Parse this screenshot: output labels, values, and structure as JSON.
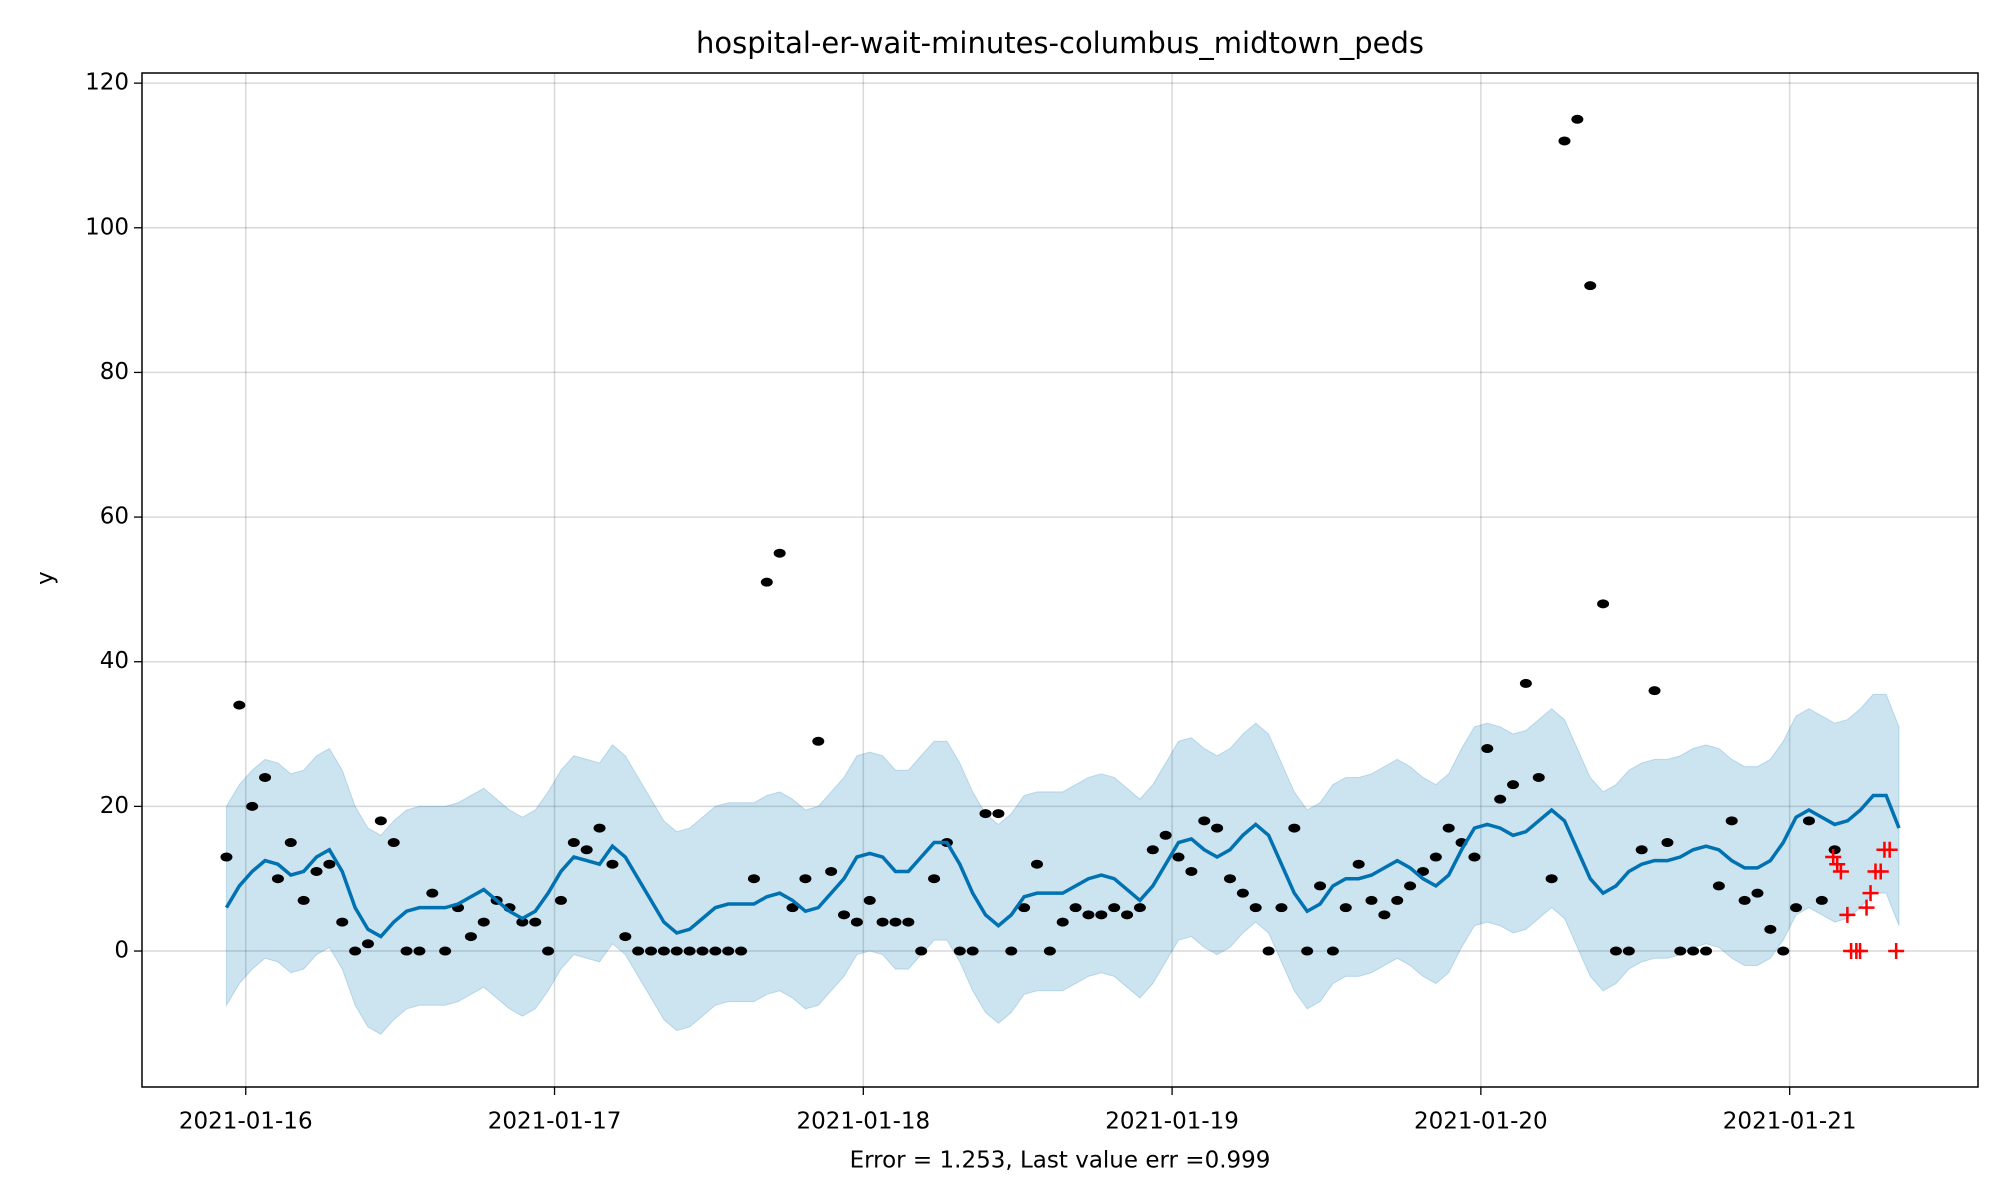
{
  "chart_data": {
    "type": "forecast",
    "title": "hospital-er-wait-minutes-columbus_midtown_peds",
    "xlabel": "Error = 1.253, Last value err =0.999",
    "ylabel": "y",
    "xlim": [
      -0.336,
      5.61
    ],
    "ylim": [
      -18.8,
      121.4
    ],
    "xticks": [
      {
        "value": 0,
        "label": "2021-01-16"
      },
      {
        "value": 1,
        "label": "2021-01-17"
      },
      {
        "value": 2,
        "label": "2021-01-18"
      },
      {
        "value": 3,
        "label": "2021-01-19"
      },
      {
        "value": 4,
        "label": "2021-01-20"
      },
      {
        "value": 5,
        "label": "2021-01-21"
      }
    ],
    "yticks": [
      0,
      20,
      40,
      60,
      80,
      100,
      120
    ],
    "grid": true,
    "observed": {
      "color": "#000000",
      "x": [
        -0.0625,
        -0.0208,
        0.0208,
        0.0625,
        0.1042,
        0.1458,
        0.1875,
        0.2292,
        0.2708,
        0.3125,
        0.3542,
        0.3958,
        0.4375,
        0.4792,
        0.5208,
        0.5625,
        0.6042,
        0.6458,
        0.6875,
        0.7292,
        0.7708,
        0.8125,
        0.8542,
        0.8958,
        0.9375,
        0.9792,
        1.0208,
        1.0625,
        1.1042,
        1.1458,
        1.1875,
        1.2292,
        1.2708,
        1.3125,
        1.3542,
        1.3958,
        1.4375,
        1.4792,
        1.5208,
        1.5625,
        1.6042,
        1.6458,
        1.6875,
        1.7292,
        1.7708,
        1.8125,
        1.8542,
        1.8958,
        1.9375,
        1.9792,
        2.0208,
        2.0625,
        2.1042,
        2.1458,
        2.1875,
        2.2292,
        2.2708,
        2.3125,
        2.3542,
        2.3958,
        2.4375,
        2.4792,
        2.5208,
        2.5625,
        2.6042,
        2.6458,
        2.6875,
        2.7292,
        2.7708,
        2.8125,
        2.8542,
        2.8958,
        2.9375,
        2.9792,
        3.0208,
        3.0625,
        3.1042,
        3.1458,
        3.1875,
        3.2292,
        3.2708,
        3.3125,
        3.3542,
        3.3958,
        3.4375,
        3.4792,
        3.5208,
        3.5625,
        3.6042,
        3.6458,
        3.6875,
        3.7292,
        3.7708,
        3.8125,
        3.8542,
        3.8958,
        3.9375,
        3.9792,
        4.0208,
        4.0625,
        4.1042,
        4.1458,
        4.1875,
        4.2292,
        4.2708,
        4.3125,
        4.3542,
        4.3958,
        4.4375,
        4.4792,
        4.5208,
        4.5625,
        4.6042,
        4.6458,
        4.6875,
        4.7292,
        4.7708,
        4.8125,
        4.8542,
        4.8958,
        4.9375,
        4.9792,
        5.0208,
        5.0625,
        5.1042,
        5.1458
      ],
      "y": [
        13,
        34,
        20,
        24,
        10,
        15,
        7,
        11,
        12,
        4,
        0,
        1,
        18,
        15,
        0,
        0,
        8,
        0,
        6,
        2,
        4,
        7,
        6,
        4,
        4,
        0,
        7,
        15,
        14,
        17,
        12,
        2,
        0,
        0,
        0,
        0,
        0,
        0,
        0,
        0,
        0,
        10,
        51,
        55,
        6,
        10,
        29,
        11,
        5,
        4,
        7,
        4,
        4,
        4,
        0,
        10,
        15,
        0,
        0,
        19,
        19,
        0,
        6,
        12,
        0,
        4,
        6,
        5,
        5,
        6,
        5,
        6,
        14,
        16,
        13,
        11,
        18,
        17,
        10,
        8,
        6,
        0,
        6,
        17,
        0,
        9,
        0,
        6,
        12,
        7,
        5,
        7,
        9,
        11,
        13,
        17,
        15,
        13,
        28,
        21,
        23,
        37,
        24,
        10,
        112,
        115,
        92,
        48,
        0,
        0,
        14,
        36,
        15,
        0,
        0,
        0,
        9,
        18,
        7,
        8,
        3,
        0,
        6,
        18,
        7,
        14
      ]
    },
    "test": {
      "color": "#ff0000",
      "x": [
        5.141,
        5.154,
        5.166,
        5.187,
        5.199,
        5.216,
        5.228,
        5.249,
        5.262,
        5.278,
        5.295,
        5.307,
        5.324,
        5.345
      ],
      "y": [
        13,
        12,
        11,
        5,
        0,
        0,
        0,
        6,
        8,
        11,
        11,
        14,
        14,
        0
      ]
    },
    "forecast": {
      "color": "#0072b2",
      "x": [
        -0.0625,
        -0.0208,
        0.0208,
        0.0625,
        0.1042,
        0.1458,
        0.1875,
        0.2292,
        0.2708,
        0.3125,
        0.3542,
        0.3958,
        0.4375,
        0.4792,
        0.5208,
        0.5625,
        0.6042,
        0.6458,
        0.6875,
        0.7292,
        0.7708,
        0.8125,
        0.8542,
        0.8958,
        0.9375,
        0.9792,
        1.0208,
        1.0625,
        1.1042,
        1.1458,
        1.1875,
        1.2292,
        1.2708,
        1.3125,
        1.3542,
        1.3958,
        1.4375,
        1.4792,
        1.5208,
        1.5625,
        1.6042,
        1.6458,
        1.6875,
        1.7292,
        1.7708,
        1.8125,
        1.8542,
        1.8958,
        1.9375,
        1.9792,
        2.0208,
        2.0625,
        2.1042,
        2.1458,
        2.1875,
        2.2292,
        2.2708,
        2.3125,
        2.3542,
        2.3958,
        2.4375,
        2.4792,
        2.5208,
        2.5625,
        2.6042,
        2.6458,
        2.6875,
        2.7292,
        2.7708,
        2.8125,
        2.8542,
        2.8958,
        2.9375,
        2.9792,
        3.0208,
        3.0625,
        3.1042,
        3.1458,
        3.1875,
        3.2292,
        3.2708,
        3.3125,
        3.3542,
        3.3958,
        3.4375,
        3.4792,
        3.5208,
        3.5625,
        3.6042,
        3.6458,
        3.6875,
        3.7292,
        3.7708,
        3.8125,
        3.8542,
        3.8958,
        3.9375,
        3.9792,
        4.0208,
        4.0625,
        4.1042,
        4.1458,
        4.1875,
        4.2292,
        4.2708,
        4.3125,
        4.3542,
        4.3958,
        4.4375,
        4.4792,
        4.5208,
        4.5625,
        4.6042,
        4.6458,
        4.6875,
        4.7292,
        4.7708,
        4.8125,
        4.8542,
        4.8958,
        4.9375,
        4.9792,
        5.0208,
        5.0625,
        5.1042,
        5.1458,
        5.1875,
        5.2292,
        5.2708,
        5.3125,
        5.3542
      ],
      "y": [
        6,
        9,
        11,
        12.5,
        12,
        10.5,
        11,
        13,
        14,
        11,
        6,
        3,
        2,
        4,
        5.5,
        6,
        6,
        6,
        6.5,
        7.5,
        8.5,
        7,
        5.5,
        4.5,
        5.5,
        8,
        11,
        13,
        12.5,
        12,
        14.5,
        13,
        10,
        7,
        4,
        2.5,
        3,
        4.5,
        6,
        6.5,
        6.5,
        6.5,
        7.5,
        8,
        7,
        5.5,
        6,
        8,
        10,
        13,
        13.5,
        13,
        11,
        11,
        13,
        15,
        15,
        12,
        8,
        5,
        3.5,
        5,
        7.5,
        8,
        8,
        8,
        9,
        10,
        10.5,
        10,
        8.5,
        7,
        9,
        12,
        15,
        15.5,
        14,
        13,
        14,
        16,
        17.5,
        16,
        12,
        8,
        5.5,
        6.5,
        9,
        10,
        10,
        10.5,
        11.5,
        12.5,
        11.5,
        10,
        9,
        10.5,
        14,
        17,
        17.5,
        17,
        16,
        16.5,
        18,
        19.5,
        18,
        14,
        10,
        8,
        9,
        11,
        12,
        12.5,
        12.5,
        13,
        14,
        14.5,
        14,
        12.5,
        11.5,
        11.5,
        12.5,
        15,
        18.5,
        19.5,
        18.5,
        17.5,
        18,
        19.5,
        21.5,
        21.5,
        17
      ],
      "upper": [
        20,
        23,
        25,
        26.5,
        26,
        24.5,
        25,
        27,
        28,
        25,
        20,
        17,
        16,
        18,
        19.5,
        20,
        20,
        20,
        20.5,
        21.5,
        22.5,
        21,
        19.5,
        18.5,
        19.5,
        22,
        25,
        27,
        26.5,
        26,
        28.5,
        27,
        24,
        21,
        18,
        16.5,
        17,
        18.5,
        20,
        20.5,
        20.5,
        20.5,
        21.5,
        22,
        21,
        19.5,
        20,
        22,
        24,
        27,
        27.5,
        27,
        25,
        25,
        27,
        29,
        29,
        26,
        22,
        19,
        17.5,
        19,
        21.5,
        22,
        22,
        22,
        23,
        24,
        24.5,
        24,
        22.5,
        21,
        23,
        26,
        29,
        29.5,
        28,
        27,
        28,
        30,
        31.5,
        30,
        26,
        22,
        19.5,
        20.5,
        23,
        24,
        24,
        24.5,
        25.5,
        26.5,
        25.5,
        24,
        23,
        24.5,
        28,
        31,
        31.5,
        31,
        30,
        30.5,
        32,
        33.5,
        32,
        28,
        24,
        22,
        23,
        25,
        26,
        26.5,
        26.5,
        27,
        28,
        28.5,
        28,
        26.5,
        25.5,
        25.5,
        26.5,
        29,
        32.5,
        33.5,
        32.5,
        31.5,
        32,
        33.5,
        35.5,
        35.5,
        31
      ],
      "lower": [
        -7.5,
        -4.5,
        -2.5,
        -1,
        -1.5,
        -3,
        -2.5,
        -0.5,
        0.5,
        -2.5,
        -7.5,
        -10.5,
        -11.5,
        -9.5,
        -8,
        -7.5,
        -7.5,
        -7.5,
        -7,
        -6,
        -5,
        -6.5,
        -8,
        -9,
        -8,
        -5.5,
        -2.5,
        -0.5,
        -1,
        -1.5,
        1,
        -0.5,
        -3.5,
        -6.5,
        -9.5,
        -11,
        -10.5,
        -9,
        -7.5,
        -7,
        -7,
        -7,
        -6,
        -5.5,
        -6.5,
        -8,
        -7.5,
        -5.5,
        -3.5,
        -0.5,
        0,
        -0.5,
        -2.5,
        -2.5,
        -0.5,
        1.5,
        1.5,
        -1.5,
        -5.5,
        -8.5,
        -10,
        -8.5,
        -6,
        -5.5,
        -5.5,
        -5.5,
        -4.5,
        -3.5,
        -3,
        -3.5,
        -5,
        -6.5,
        -4.5,
        -1.5,
        1.5,
        2,
        0.5,
        -0.5,
        0.5,
        2.5,
        4,
        2.5,
        -1.5,
        -5.5,
        -8,
        -7,
        -4.5,
        -3.5,
        -3.5,
        -3,
        -2,
        -1,
        -2,
        -3.5,
        -4.5,
        -3,
        0.5,
        3.5,
        4,
        3.5,
        2.5,
        3,
        4.5,
        6,
        4.5,
        0.5,
        -3.5,
        -5.5,
        -4.5,
        -2.5,
        -1.5,
        -1,
        -1,
        -0.5,
        0.5,
        1,
        0.5,
        -1,
        -2,
        -2,
        -1,
        1.5,
        5,
        6,
        5,
        4,
        4.5,
        6,
        8,
        8,
        3.5
      ]
    }
  }
}
